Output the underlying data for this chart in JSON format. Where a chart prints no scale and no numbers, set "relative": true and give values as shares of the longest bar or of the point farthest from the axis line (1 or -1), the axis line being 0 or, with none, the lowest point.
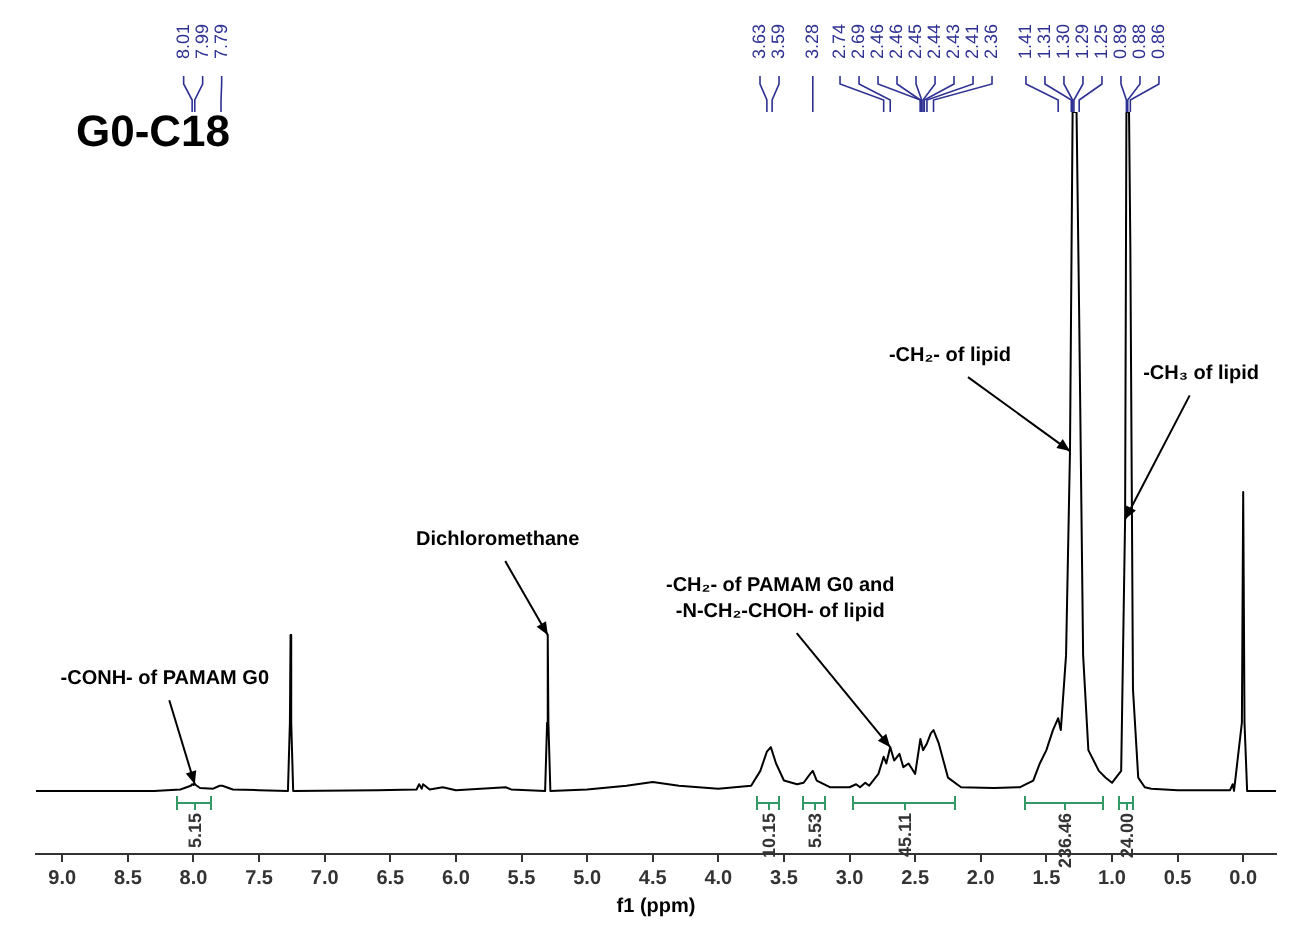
{
  "chart_data": {
    "type": "line",
    "title": "G0-C18",
    "xlabel": "f1 (ppm)",
    "relative": true,
    "color": "#000000",
    "x": [
      9.2,
      8.3,
      8.1,
      8.02,
      8.01,
      8.0,
      7.99,
      7.95,
      7.85,
      7.8,
      7.78,
      7.7,
      7.5,
      7.28,
      7.265,
      7.26,
      7.255,
      7.24,
      6.6,
      6.3,
      6.28,
      6.26,
      6.25,
      6.2,
      6.1,
      6.0,
      5.62,
      5.58,
      5.32,
      5.305,
      5.3,
      5.295,
      5.28,
      5.0,
      4.7,
      4.5,
      4.3,
      4.0,
      3.75,
      3.68,
      3.63,
      3.6,
      3.56,
      3.5,
      3.4,
      3.35,
      3.3,
      3.28,
      3.25,
      3.15,
      3.0,
      2.95,
      2.92,
      2.88,
      2.85,
      2.78,
      2.74,
      2.72,
      2.69,
      2.66,
      2.62,
      2.59,
      2.55,
      2.5,
      2.46,
      2.44,
      2.41,
      2.38,
      2.36,
      2.32,
      2.25,
      2.15,
      1.9,
      1.7,
      1.6,
      1.55,
      1.5,
      1.45,
      1.41,
      1.39,
      1.35,
      1.32,
      1.3,
      1.29,
      1.27,
      1.25,
      1.22,
      1.18,
      1.1,
      1.05,
      1.0,
      0.93,
      0.9,
      0.89,
      0.88,
      0.87,
      0.86,
      0.84,
      0.8,
      0.75,
      0.7,
      0.5,
      0.1,
      0.08,
      0.07,
      0.01,
      0.0,
      -0.01,
      -0.03,
      -0.25
    ],
    "values": [
      0.085,
      0.085,
      0.087,
      0.092,
      0.094,
      0.093,
      0.094,
      0.089,
      0.088,
      0.092,
      0.092,
      0.087,
      0.086,
      0.085,
      0.177,
      0.295,
      0.177,
      0.085,
      0.086,
      0.087,
      0.094,
      0.088,
      0.094,
      0.087,
      0.09,
      0.086,
      0.09,
      0.087,
      0.085,
      0.177,
      0.295,
      0.177,
      0.085,
      0.087,
      0.092,
      0.097,
      0.092,
      0.088,
      0.092,
      0.112,
      0.138,
      0.144,
      0.122,
      0.099,
      0.094,
      0.096,
      0.108,
      0.112,
      0.099,
      0.09,
      0.09,
      0.094,
      0.09,
      0.096,
      0.092,
      0.108,
      0.131,
      0.122,
      0.144,
      0.126,
      0.135,
      0.117,
      0.122,
      0.108,
      0.155,
      0.14,
      0.149,
      0.163,
      0.167,
      0.149,
      0.103,
      0.09,
      0.089,
      0.09,
      0.099,
      0.122,
      0.14,
      0.167,
      0.183,
      0.167,
      0.268,
      0.543,
      1,
      1,
      1,
      0.726,
      0.268,
      0.14,
      0.112,
      0.103,
      0.096,
      0.112,
      0.451,
      1,
      1,
      1,
      0.817,
      0.222,
      0.103,
      0.09,
      0.088,
      0.086,
      0.086,
      0.094,
      0.085,
      0.177,
      0.488,
      0.177,
      0.085,
      0.085
    ],
    "xlim": [
      9.2,
      -0.25
    ],
    "xticks": [
      {
        "value": 9,
        "label": "9.0"
      },
      {
        "value": 8.5,
        "label": "8.5"
      },
      {
        "value": 8,
        "label": "8.0"
      },
      {
        "value": 7.5,
        "label": "7.5"
      },
      {
        "value": 7,
        "label": "7.0"
      },
      {
        "value": 6.5,
        "label": "6.5"
      },
      {
        "value": 6,
        "label": "6.0"
      },
      {
        "value": 5.5,
        "label": "5.5"
      },
      {
        "value": 5,
        "label": "5.0"
      },
      {
        "value": 4.5,
        "label": "4.5"
      },
      {
        "value": 4,
        "label": "4.0"
      },
      {
        "value": 3.5,
        "label": "3.5"
      },
      {
        "value": 3,
        "label": "3.0"
      },
      {
        "value": 2.5,
        "label": "2.5"
      },
      {
        "value": 2,
        "label": "2.0"
      },
      {
        "value": 1.5,
        "label": "1.5"
      },
      {
        "value": 1,
        "label": "1.0"
      },
      {
        "value": 0.5,
        "label": "0.5"
      },
      {
        "value": 0,
        "label": "0.0"
      }
    ],
    "annotations": [
      {
        "text": "-CONH- of PAMAM G0",
        "x": 7.99,
        "y": 0.094
      },
      {
        "text": "Dichloromethane",
        "x": 5.3,
        "y": 0.295
      },
      {
        "text": "-CH₂- of PAMAM G0 and\n-N-CH₂-CHOH- of lipid",
        "x": 2.69,
        "y": 0.144
      },
      {
        "text": "-CH₂- of lipid",
        "x": 1.32,
        "y": 0.543
      },
      {
        "text": "-CH₃ of lipid",
        "x": 0.9,
        "y": 0.451
      },
      "5.15",
      "10.15",
      "5.53",
      "45.11",
      "236.46",
      "24.00",
      {
        "text": "8.01",
        "x": 8.01
      },
      {
        "text": "7.99",
        "x": 7.99
      },
      {
        "text": "7.79",
        "x": 7.79
      },
      {
        "text": "3.63",
        "x": 3.63
      },
      {
        "text": "3.59",
        "x": 3.59
      },
      {
        "text": "3.28",
        "x": 3.28
      },
      {
        "text": "2.74",
        "x": 2.74
      },
      {
        "text": "2.69",
        "x": 2.69
      },
      {
        "text": "2.46",
        "x": 2.46
      },
      {
        "text": "2.46",
        "x": 2.46
      },
      {
        "text": "2.45",
        "x": 2.45
      },
      {
        "text": "2.44",
        "x": 2.44
      },
      {
        "text": "2.43",
        "x": 2.43
      },
      {
        "text": "2.41",
        "x": 2.41
      },
      {
        "text": "2.36",
        "x": 2.36
      },
      {
        "text": "1.41",
        "x": 1.41
      },
      {
        "text": "1.31",
        "x": 1.31
      },
      {
        "text": "1.30",
        "x": 1.3
      },
      {
        "text": "1.29",
        "x": 1.29
      },
      {
        "text": "1.25",
        "x": 1.25
      },
      {
        "text": "0.89",
        "x": 0.89
      },
      {
        "text": "0.88",
        "x": 0.88
      },
      {
        "text": "0.86",
        "x": 0.86
      }
    ]
  }
}
